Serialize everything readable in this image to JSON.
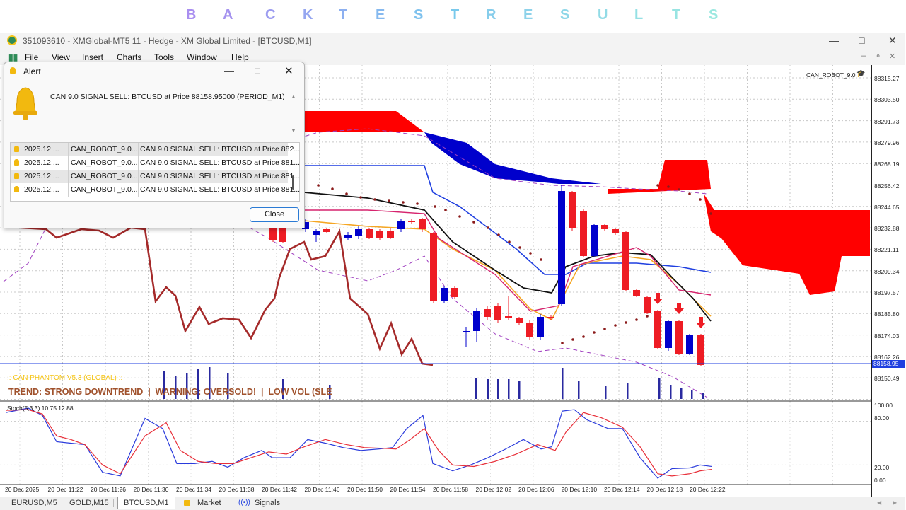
{
  "banner": {
    "letters": [
      "B",
      "A",
      "C",
      "K",
      "T",
      "E",
      "S",
      "T",
      "R",
      "E",
      "S",
      "U",
      "L",
      "T",
      "S"
    ]
  },
  "window": {
    "title": "351093610 - XMGlobal-MT5 11 - Hedge - XM Global Limited - [BTCUSD,M1]",
    "menu": [
      "File",
      "View",
      "Insert",
      "Charts",
      "Tools",
      "Window",
      "Help"
    ]
  },
  "alert": {
    "title": "Alert",
    "message": "CAN 9.0 SIGNAL SELL: BTCUSD at Price 88158.95000 (PERIOD_M1)",
    "rows": [
      {
        "time": "2025.12....",
        "expert": "CAN_ROBOT_9.0...",
        "text": "CAN 9.0 SIGNAL SELL: BTCUSD at Price 882..."
      },
      {
        "time": "2025.12....",
        "expert": "CAN_ROBOT_9.0...",
        "text": "CAN 9.0 SIGNAL SELL: BTCUSD at Price 881..."
      },
      {
        "time": "2025.12....",
        "expert": "CAN_ROBOT_9.0...",
        "text": "CAN 9.0 SIGNAL SELL: BTCUSD at Price 881..."
      },
      {
        "time": "2025.12....",
        "expert": "CAN_ROBOT_9.0...",
        "text": "CAN 9.0 SIGNAL SELL: BTCUSD at Price 881..."
      }
    ],
    "close_label": "Close"
  },
  "chart": {
    "robot_label": "CAN_ROBOT_9.0",
    "phantom_label": ":: CAN PHANTOM V5.3 (GLOBAL) ::",
    "trend_text": "TREND: STRONG DOWNTREND  |  WARNING: OVERSOLD!  |  LOW VOL (SLE",
    "current_price": "88158.95",
    "price_labels": [
      "88315.27",
      "88303.50",
      "88291.73",
      "88279.96",
      "88268.19",
      "88256.42",
      "88244.65",
      "88232.88",
      "88221.11",
      "88209.34",
      "88197.57",
      "88185.80",
      "88174.03",
      "88162.26",
      "88150.49"
    ],
    "stoch_label": "Stoch(5,3,3) 10.75 12.88",
    "stoch_levels": [
      "100.00",
      "80.00",
      "20.00",
      "0.00"
    ],
    "time_labels": [
      "20 Dec 2025",
      "20 Dec 11:22",
      "20 Dec 11:26",
      "20 Dec 11:30",
      "20 Dec 11:34",
      "20 Dec 11:38",
      "20 Dec 11:42",
      "20 Dec 11:46",
      "20 Dec 11:50",
      "20 Dec 11:54",
      "20 Dec 11:58",
      "20 Dec 12:02",
      "20 Dec 12:06",
      "20 Dec 12:10",
      "20 Dec 12:14",
      "20 Dec 12:18",
      "20 Dec 12:22"
    ],
    "colors": {
      "bull": "#0000cc",
      "bear": "#ee1c24",
      "tenkan": "#a52a2a",
      "kijun": "#1f3fe0",
      "ma_fast": "#f5a623",
      "ma_slow": "#111111",
      "envelope": "#a040c0"
    }
  },
  "tabs": [
    "EURUSD,M5",
    "GOLD,M15",
    "BTCUSD,M1",
    "Market",
    "Signals"
  ]
}
